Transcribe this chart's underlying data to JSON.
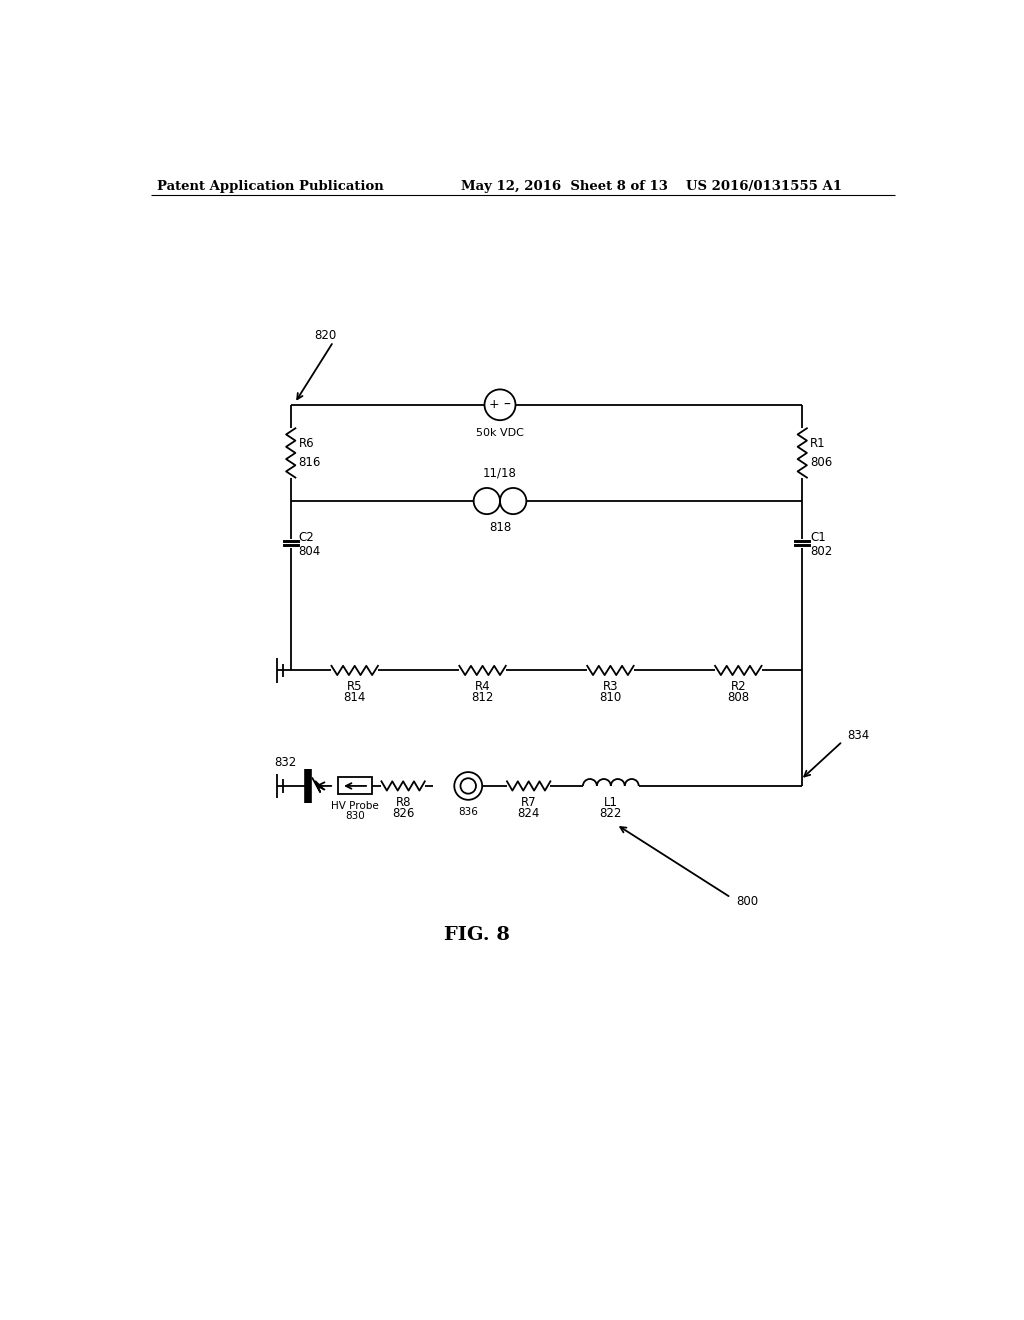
{
  "bg_color": "#ffffff",
  "line_color": "#000000",
  "header_left": "Patent Application Publication",
  "header_mid": "May 12, 2016  Sheet 8 of 13",
  "header_right": "US 2016/0131555 A1",
  "fig_label": "FIG. 8"
}
